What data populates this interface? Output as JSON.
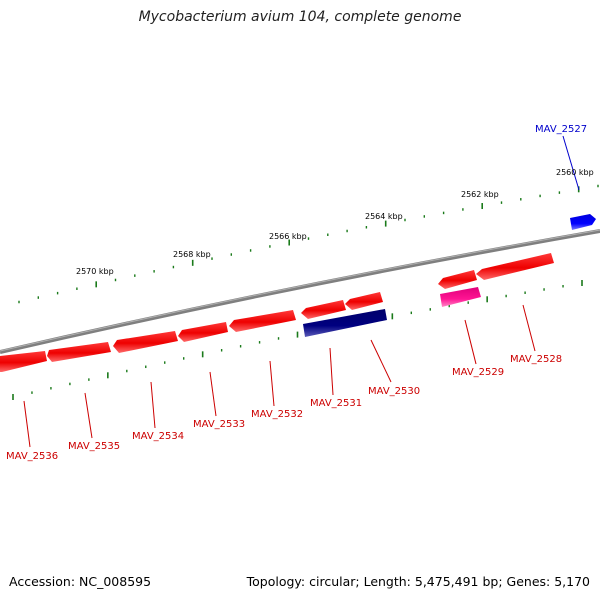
{
  "title": "Mycobacterium avium 104, complete genome",
  "footer": {
    "accession": "Accession: NC_008595",
    "summary": "Topology: circular; Length: 5,475,491 bp; Genes: 5,170"
  },
  "colors": {
    "forward_gene": "#ff0000",
    "reverse_gene_red": "#ff0000",
    "navy_gene": "#000080",
    "magenta_gene": "#ff1493",
    "blue_gene": "#0000ff",
    "tick": "#006400",
    "backbone": "#808080"
  },
  "ruler": [
    {
      "label": "2560 kbp"
    },
    {
      "label": "2562 kbp"
    },
    {
      "label": "2564 kbp"
    },
    {
      "label": "2566 kbp"
    },
    {
      "label": "2568 kbp"
    },
    {
      "label": "2570 kbp"
    }
  ],
  "gene_labels": [
    {
      "name": "MAV_2527",
      "color": "#0000cc"
    },
    {
      "name": "MAV_2528",
      "color": "#cc0000"
    },
    {
      "name": "MAV_2529",
      "color": "#cc0000"
    },
    {
      "name": "MAV_2530",
      "color": "#cc0000"
    },
    {
      "name": "MAV_2531",
      "color": "#cc0000"
    },
    {
      "name": "MAV_2532",
      "color": "#cc0000"
    },
    {
      "name": "MAV_2533",
      "color": "#cc0000"
    },
    {
      "name": "MAV_2534",
      "color": "#cc0000"
    },
    {
      "name": "MAV_2535",
      "color": "#cc0000"
    },
    {
      "name": "MAV_2536",
      "color": "#cc0000"
    }
  ]
}
